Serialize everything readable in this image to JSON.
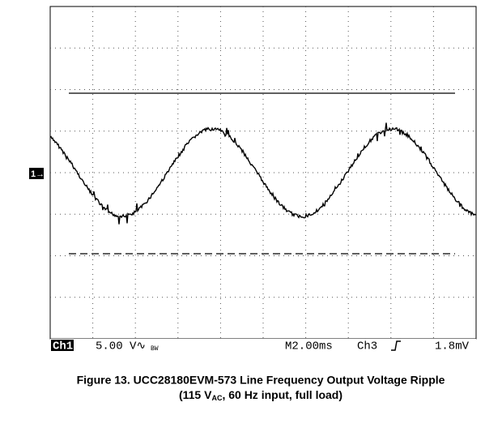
{
  "scope": {
    "channel": "Ch1",
    "scale": "5.00 V∿",
    "bandwidth": "BW",
    "timebase": "M2.00ms",
    "trigger_source": "Ch3",
    "trigger_level": "1.8mV",
    "marker": "1→"
  },
  "caption": {
    "line1": "Figure 13. UCC28180EVM-573 Line Frequency Output Voltage Ripple",
    "line2_pre": "(115 V",
    "line2_sub": "AC",
    "line2_post": ", 60 Hz input, full load)"
  }
}
